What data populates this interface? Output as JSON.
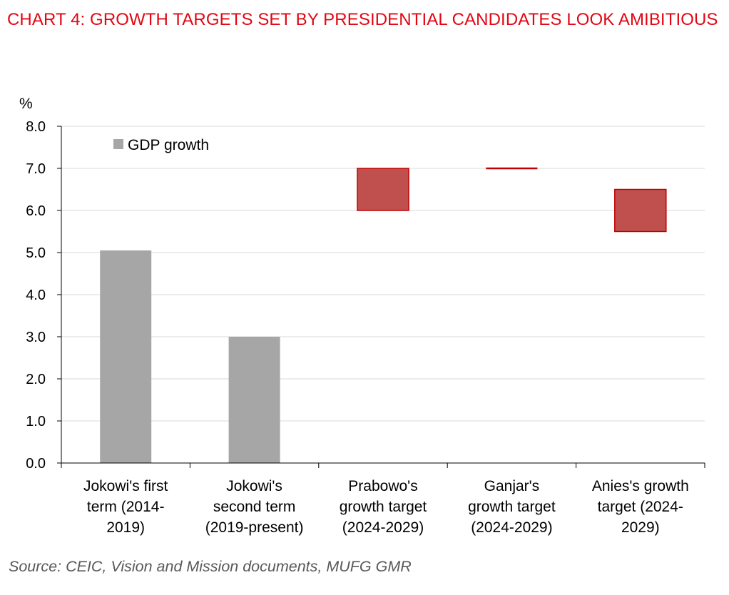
{
  "title": "CHART 4: GROWTH TARGETS SET BY PRESIDENTIAL CANDIDATES LOOK AMIBITIOUS",
  "source": "Source: CEIC, Vision and Mission documents, MUFG GMR",
  "colors": {
    "title": "#e30613",
    "gdp_bar": "#a6a6a6",
    "target_fill": "#c0504d",
    "target_edge": "#c00000",
    "grid": "#d9d9d9"
  },
  "chart_data": {
    "type": "bar",
    "ylabel": "%",
    "ylim": [
      0,
      8
    ],
    "yticks": [
      "0.0",
      "1.0",
      "2.0",
      "3.0",
      "4.0",
      "5.0",
      "6.0",
      "7.0",
      "8.0"
    ],
    "grid": true,
    "legend": {
      "position": "top-left",
      "entries": [
        "GDP growth"
      ]
    },
    "categories": [
      [
        "Jokowi's first",
        "term (2014-",
        "2019)"
      ],
      [
        "Jokowi's",
        "second term",
        "(2019-present)"
      ],
      [
        "Prabowo's",
        "growth target",
        "(2024-2029)"
      ],
      [
        "Ganjar's",
        "growth target",
        "(2024-2029)"
      ],
      [
        "Anies's growth",
        "target (2024-",
        "2029)"
      ]
    ],
    "series": [
      {
        "name": "GDP growth",
        "values": [
          5.05,
          3.0,
          null,
          null,
          null
        ]
      }
    ],
    "target_ranges": [
      {
        "low": null,
        "high": null
      },
      {
        "low": null,
        "high": null
      },
      {
        "low": 6.0,
        "high": 7.0
      },
      {
        "low": 7.0,
        "high": 7.0
      },
      {
        "low": 5.5,
        "high": 6.5
      }
    ]
  }
}
